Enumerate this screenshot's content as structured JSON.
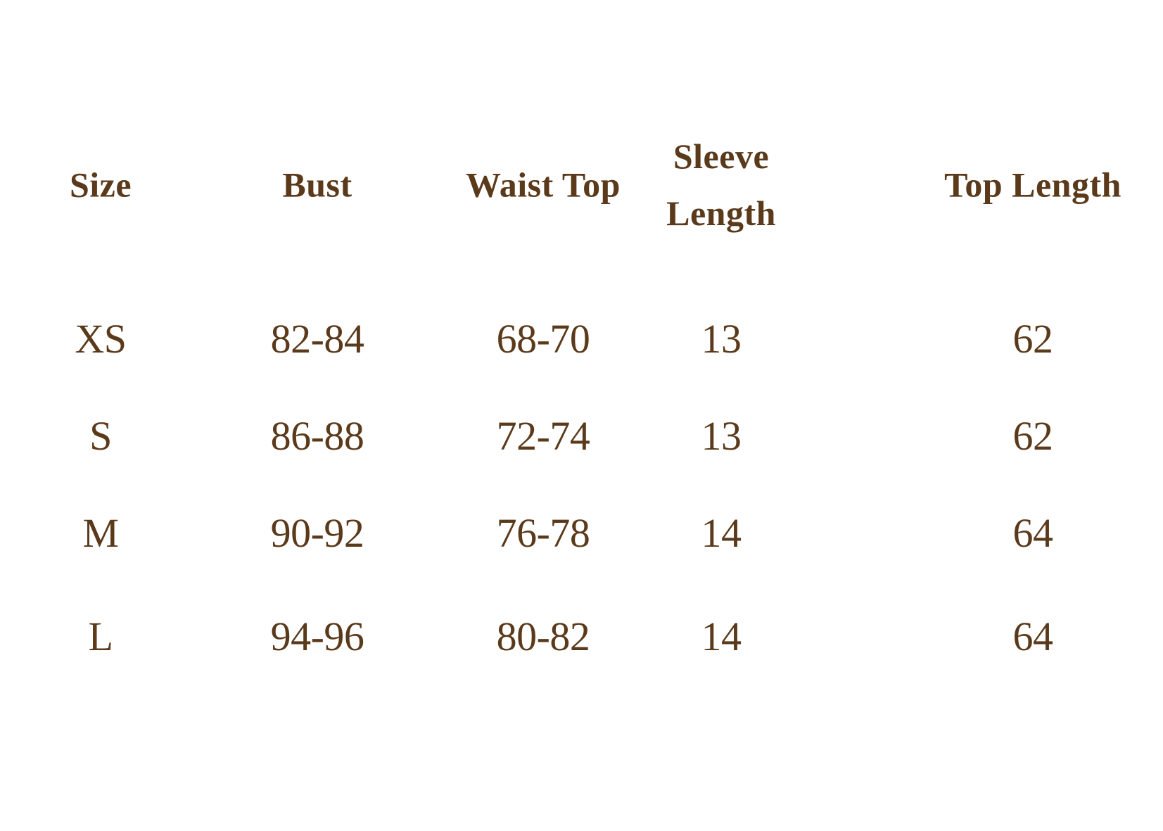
{
  "colors": {
    "text": "#5B3A1B",
    "background": "#FFFFFF"
  },
  "table": {
    "columns": [
      "Size",
      "Bust",
      "Waist Top",
      "Sleeve Length",
      "Top Length"
    ],
    "rows": [
      {
        "cells": [
          "XS",
          "82-84",
          "68-70",
          "13",
          "62"
        ]
      },
      {
        "cells": [
          "S",
          "86-88",
          "72-74",
          "13",
          "62"
        ]
      },
      {
        "cells": [
          "M",
          "90-92",
          "76-78",
          "14",
          "64"
        ]
      },
      {
        "cells": [
          "L",
          "94-96",
          "80-82",
          "14",
          "64"
        ]
      }
    ]
  },
  "chart_data": {
    "type": "table",
    "title": "",
    "columns": [
      "Size",
      "Bust",
      "Waist Top",
      "Sleeve Length",
      "Top Length"
    ],
    "rows": [
      [
        "XS",
        "82-84",
        "68-70",
        13,
        62
      ],
      [
        "S",
        "86-88",
        "72-74",
        13,
        62
      ],
      [
        "M",
        "90-92",
        "76-78",
        14,
        64
      ],
      [
        "L",
        "94-96",
        "80-82",
        14,
        64
      ]
    ]
  }
}
